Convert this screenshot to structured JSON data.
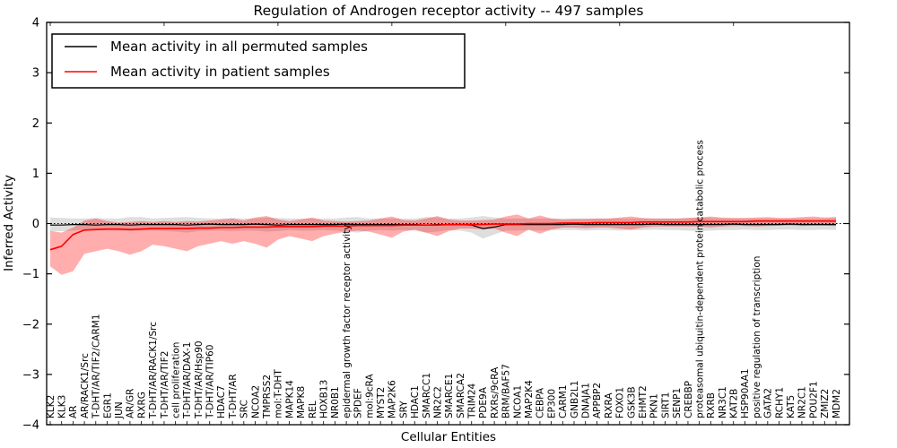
{
  "chart_data": {
    "type": "line",
    "title": "Regulation of Androgen receptor activity -- 497 samples",
    "xlabel": "Cellular Entities",
    "ylabel": "Inferred Activity",
    "ylim": [
      -4,
      4
    ],
    "yticks": [
      4,
      3,
      2,
      1,
      0,
      -1,
      -2,
      -3,
      -4
    ],
    "grid": false,
    "legend_position": "upper left",
    "zero_reference_line": "dotted",
    "x_tick_label_rotation_deg": 90,
    "categories": [
      "KLK2",
      "KLK3",
      "AR",
      "AR/RACK1/Src",
      "T-DHT/AR/TIF2/CARM1",
      "EGR1",
      "JUN",
      "AR/GR",
      "RXRG",
      "T-DHT/AR/RACK1/Src",
      "T-DHT/AR/TIF2",
      "cell proliferation",
      "T-DHT/AR/DAX-1",
      "T-DHT/AR/Hsp90",
      "T-DHT/AR/TIP60",
      "HDAC7",
      "T-DHT/AR",
      "SRC",
      "NCOA2",
      "TMPRSS2",
      "mol:T-DHT",
      "MAPK14",
      "MAPK8",
      "REL",
      "HOXB13",
      "NR0B1",
      "epidermal growth factor receptor activity",
      "SPDEF",
      "mol:9cRA",
      "MYST2",
      "MAP2K6",
      "SRY",
      "HDAC1",
      "SMARCC1",
      "NR2C2",
      "SMARCE1",
      "SMARCA2",
      "TRIM24",
      "PDE9A",
      "RXRs/9cRA",
      "BRM/BAF57",
      "NCOA1",
      "MAP2K4",
      "CEBPA",
      "EP300",
      "CARM1",
      "GNB2L1",
      "DNAJA1",
      "APPBP2",
      "RXRA",
      "FOXO1",
      "GSK3B",
      "EHMT2",
      "PKN1",
      "SIRT1",
      "SENP1",
      "CREBBP",
      "proteasomal ubiquitin-dependent protein catabolic process",
      "RXRB",
      "NR3C1",
      "KAT2B",
      "HSP90AA1",
      "positive regulation of transcription",
      "GATA2",
      "RCHY1",
      "KAT5",
      "NR2C1",
      "POU2F1",
      "ZMIZ2",
      "MDM2"
    ],
    "series": [
      {
        "id": "permuted",
        "name": "Mean activity in all permuted samples",
        "color": "#000000",
        "line_width": 1.2,
        "band_color": "rgba(0,0,0,0.13)",
        "values": [
          -0.03,
          -0.03,
          -0.02,
          -0.02,
          -0.03,
          -0.02,
          -0.02,
          -0.03,
          -0.02,
          -0.02,
          -0.02,
          -0.02,
          -0.03,
          -0.02,
          -0.01,
          -0.02,
          -0.02,
          -0.02,
          -0.01,
          -0.02,
          -0.03,
          -0.02,
          -0.02,
          -0.02,
          -0.02,
          -0.02,
          -0.01,
          -0.02,
          -0.02,
          -0.02,
          -0.02,
          -0.02,
          -0.02,
          -0.03,
          -0.02,
          -0.02,
          -0.02,
          -0.03,
          -0.1,
          -0.07,
          -0.02,
          -0.02,
          -0.02,
          -0.02,
          -0.02,
          -0.02,
          -0.01,
          -0.02,
          -0.02,
          -0.02,
          -0.02,
          -0.02,
          -0.02,
          -0.01,
          -0.02,
          -0.02,
          -0.02,
          -0.02,
          -0.02,
          -0.02,
          -0.01,
          -0.02,
          -0.02,
          -0.02,
          -0.02,
          -0.01,
          -0.02,
          -0.02,
          -0.02,
          -0.02
        ],
        "band_lower": [
          -0.16,
          -0.15,
          -0.14,
          -0.13,
          -0.14,
          -0.13,
          -0.14,
          -0.15,
          -0.14,
          -0.14,
          -0.15,
          -0.16,
          -0.18,
          -0.15,
          -0.14,
          -0.14,
          -0.15,
          -0.14,
          -0.14,
          -0.16,
          -0.15,
          -0.13,
          -0.14,
          -0.14,
          -0.13,
          -0.14,
          -0.16,
          -0.18,
          -0.14,
          -0.13,
          -0.14,
          -0.13,
          -0.14,
          -0.18,
          -0.16,
          -0.13,
          -0.14,
          -0.18,
          -0.3,
          -0.22,
          -0.14,
          -0.14,
          -0.13,
          -0.14,
          -0.13,
          -0.13,
          -0.13,
          -0.14,
          -0.13,
          -0.13,
          -0.14,
          -0.13,
          -0.13,
          -0.12,
          -0.13,
          -0.13,
          -0.14,
          -0.15,
          -0.14,
          -0.13,
          -0.13,
          -0.12,
          -0.13,
          -0.13,
          -0.12,
          -0.12,
          -0.13,
          -0.13,
          -0.12,
          -0.13
        ],
        "band_upper": [
          0.12,
          0.11,
          0.1,
          0.1,
          0.11,
          0.1,
          0.1,
          0.13,
          0.13,
          0.1,
          0.11,
          0.12,
          0.13,
          0.11,
          0.1,
          0.1,
          0.11,
          0.1,
          0.1,
          0.12,
          0.11,
          0.1,
          0.1,
          0.1,
          0.1,
          0.1,
          0.12,
          0.13,
          0.1,
          0.1,
          0.1,
          0.1,
          0.1,
          0.13,
          0.12,
          0.1,
          0.1,
          0.12,
          0.15,
          0.12,
          0.1,
          0.1,
          0.1,
          0.1,
          0.1,
          0.1,
          0.1,
          0.1,
          0.1,
          0.1,
          0.1,
          0.1,
          0.1,
          0.1,
          0.1,
          0.1,
          0.11,
          0.12,
          0.11,
          0.1,
          0.1,
          0.1,
          0.1,
          0.1,
          0.1,
          0.1,
          0.1,
          0.1,
          0.1,
          0.11
        ]
      },
      {
        "id": "patient",
        "name": "Mean activity in patient samples",
        "color": "#ff0000",
        "line_width": 1.6,
        "band_color": "rgba(255,0,0,0.32)",
        "values": [
          -0.52,
          -0.45,
          -0.22,
          -0.13,
          -0.12,
          -0.11,
          -0.11,
          -0.12,
          -0.11,
          -0.1,
          -0.1,
          -0.1,
          -0.1,
          -0.09,
          -0.09,
          -0.08,
          -0.08,
          -0.07,
          -0.07,
          -0.07,
          -0.06,
          -0.06,
          -0.06,
          -0.06,
          -0.05,
          -0.05,
          -0.05,
          -0.04,
          -0.04,
          -0.04,
          -0.04,
          -0.03,
          -0.03,
          -0.03,
          -0.03,
          -0.02,
          -0.02,
          -0.02,
          -0.02,
          -0.01,
          -0.01,
          -0.01,
          0.0,
          0.0,
          0.0,
          0.01,
          0.01,
          0.01,
          0.02,
          0.02,
          0.02,
          0.02,
          0.03,
          0.03,
          0.03,
          0.03,
          0.03,
          0.04,
          0.04,
          0.04,
          0.04,
          0.04,
          0.05,
          0.05,
          0.05,
          0.05,
          0.05,
          0.05,
          0.05,
          0.05
        ],
        "band_lower": [
          -0.85,
          -1.02,
          -0.95,
          -0.6,
          -0.55,
          -0.5,
          -0.55,
          -0.62,
          -0.55,
          -0.42,
          -0.45,
          -0.5,
          -0.55,
          -0.45,
          -0.4,
          -0.35,
          -0.4,
          -0.35,
          -0.4,
          -0.48,
          -0.32,
          -0.25,
          -0.3,
          -0.35,
          -0.25,
          -0.2,
          -0.16,
          -0.14,
          -0.16,
          -0.22,
          -0.28,
          -0.16,
          -0.12,
          -0.18,
          -0.25,
          -0.15,
          -0.1,
          -0.1,
          -0.12,
          -0.1,
          -0.18,
          -0.25,
          -0.12,
          -0.2,
          -0.12,
          -0.08,
          -0.08,
          -0.09,
          -0.08,
          -0.08,
          -0.1,
          -0.12,
          -0.08,
          -0.06,
          -0.06,
          -0.06,
          -0.06,
          -0.06,
          -0.08,
          -0.06,
          -0.05,
          -0.05,
          -0.06,
          -0.05,
          -0.04,
          -0.04,
          -0.05,
          -0.04,
          -0.04,
          -0.05
        ],
        "band_upper": [
          -0.15,
          -0.18,
          -0.08,
          0.06,
          0.1,
          0.05,
          0.02,
          0.03,
          0.05,
          0.03,
          0.05,
          0.03,
          0.05,
          0.04,
          0.06,
          0.08,
          0.1,
          0.06,
          0.12,
          0.15,
          0.08,
          0.05,
          0.08,
          0.12,
          0.06,
          0.05,
          0.04,
          0.05,
          0.06,
          0.1,
          0.14,
          0.07,
          0.06,
          0.1,
          0.15,
          0.08,
          0.06,
          0.06,
          0.07,
          0.08,
          0.14,
          0.18,
          0.1,
          0.16,
          0.1,
          0.08,
          0.09,
          0.09,
          0.1,
          0.1,
          0.12,
          0.14,
          0.11,
          0.1,
          0.1,
          0.1,
          0.11,
          0.12,
          0.14,
          0.12,
          0.11,
          0.11,
          0.12,
          0.13,
          0.11,
          0.11,
          0.13,
          0.14,
          0.12,
          0.13
        ]
      }
    ]
  },
  "colors": {
    "background": "#ffffff",
    "frame": "#000000",
    "permuted_line": "#000000",
    "patient_line": "#ff0000",
    "permuted_band": "rgba(0,0,0,0.13)",
    "patient_band": "rgba(255,0,0,0.32)"
  }
}
